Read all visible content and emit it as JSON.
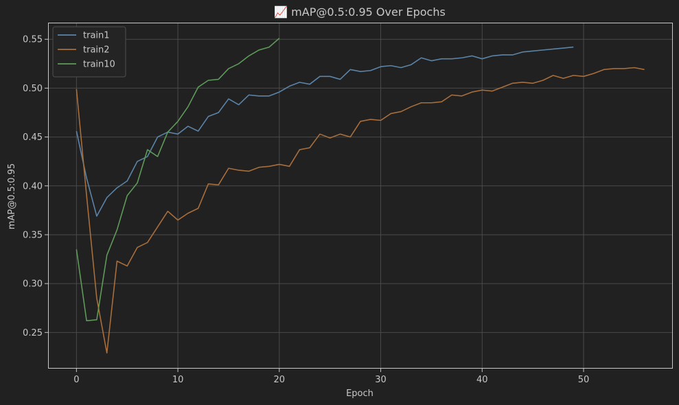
{
  "chart_data": {
    "type": "line",
    "title": "📈 mAP@0.5:0.95 Over Epochs",
    "xlabel": "Epoch",
    "ylabel": "mAP@0.5:0.95",
    "xlim": [
      -2.8,
      58.8
    ],
    "ylim": [
      0.213,
      0.567
    ],
    "xticks": [
      0,
      10,
      20,
      30,
      40,
      50
    ],
    "yticks": [
      0.25,
      0.3,
      0.35,
      0.4,
      0.45,
      0.5,
      0.55
    ],
    "grid": true,
    "legend_position": "top-left",
    "series": [
      {
        "name": "train1",
        "color": "#5b84a8",
        "x_start": 0,
        "values": [
          0.456,
          0.408,
          0.369,
          0.388,
          0.398,
          0.405,
          0.425,
          0.43,
          0.45,
          0.455,
          0.453,
          0.461,
          0.456,
          0.471,
          0.475,
          0.489,
          0.483,
          0.493,
          0.492,
          0.492,
          0.496,
          0.502,
          0.506,
          0.504,
          0.512,
          0.512,
          0.509,
          0.519,
          0.517,
          0.518,
          0.522,
          0.523,
          0.521,
          0.524,
          0.531,
          0.528,
          0.53,
          0.53,
          0.531,
          0.533,
          0.53,
          0.533,
          0.534,
          0.534,
          0.537,
          0.538,
          0.539,
          0.54,
          0.541,
          0.542
        ]
      },
      {
        "name": "train2",
        "color": "#a86e3c",
        "x_start": 0,
        "values": [
          0.499,
          0.39,
          0.285,
          0.229,
          0.323,
          0.318,
          0.337,
          0.342,
          0.358,
          0.374,
          0.365,
          0.372,
          0.377,
          0.402,
          0.401,
          0.418,
          0.416,
          0.415,
          0.419,
          0.42,
          0.422,
          0.42,
          0.437,
          0.439,
          0.453,
          0.449,
          0.453,
          0.45,
          0.466,
          0.468,
          0.467,
          0.474,
          0.476,
          0.481,
          0.485,
          0.485,
          0.486,
          0.493,
          0.492,
          0.496,
          0.498,
          0.497,
          0.501,
          0.505,
          0.506,
          0.505,
          0.508,
          0.513,
          0.51,
          0.513,
          0.512,
          0.515,
          0.519,
          0.52,
          0.52,
          0.521,
          0.519
        ]
      },
      {
        "name": "train10",
        "color": "#5e9a5a",
        "x_start": 0,
        "values": [
          0.335,
          0.262,
          0.263,
          0.329,
          0.355,
          0.39,
          0.403,
          0.437,
          0.43,
          0.455,
          0.466,
          0.481,
          0.501,
          0.508,
          0.509,
          0.52,
          0.525,
          0.533,
          0.539,
          0.542,
          0.551
        ]
      }
    ]
  }
}
